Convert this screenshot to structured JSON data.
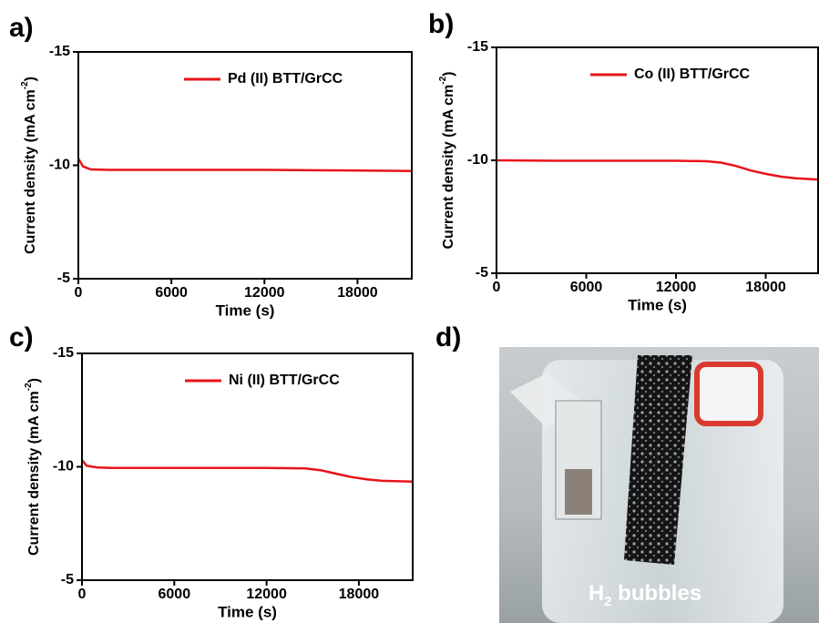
{
  "chart_data": [
    {
      "type": "line",
      "panel_label": "a)",
      "xlabel": "Time (s)",
      "ylabel": "Current density (mA cm",
      "ylabel_exp": "-2",
      "ylabel_end": ")",
      "x": [
        0,
        300,
        800,
        2000,
        6000,
        12000,
        16000,
        20000,
        21500
      ],
      "series": [
        {
          "name": "Pd (II) BTT/GrCC",
          "color": "#e8141a",
          "values": [
            -10.3,
            -9.95,
            -9.82,
            -9.8,
            -9.8,
            -9.8,
            -9.78,
            -9.76,
            -9.75
          ]
        }
      ],
      "xlim": [
        0,
        21500
      ],
      "xticks": [
        0,
        6000,
        12000,
        18000
      ],
      "ylim": [
        -5,
        -15
      ],
      "yticks": [
        -15,
        -10,
        -5
      ],
      "legend": "upper right"
    },
    {
      "type": "line",
      "panel_label": "b)",
      "xlabel": "Time (s)",
      "ylabel": "Current density (mA cm",
      "ylabel_exp": "-2",
      "ylabel_end": ")",
      "x": [
        0,
        4000,
        8000,
        12000,
        14000,
        15000,
        16000,
        17000,
        18000,
        19000,
        20000,
        21500
      ],
      "series": [
        {
          "name": "Co (II) BTT/GrCC",
          "color": "#e8141a",
          "values": [
            -10,
            -9.98,
            -9.98,
            -9.98,
            -9.96,
            -9.9,
            -9.75,
            -9.55,
            -9.4,
            -9.28,
            -9.2,
            -9.15
          ]
        }
      ],
      "xlim": [
        0,
        21500
      ],
      "xticks": [
        0,
        6000,
        12000,
        18000
      ],
      "ylim": [
        -5,
        -15
      ],
      "yticks": [
        -15,
        -10,
        -5
      ],
      "legend": "upper right"
    },
    {
      "type": "line",
      "panel_label": "c)",
      "xlabel": "Time (s)",
      "ylabel": "Current density (mA cm",
      "ylabel_exp": "-2",
      "ylabel_end": ")",
      "x": [
        0,
        300,
        1000,
        2000,
        6000,
        12000,
        14500,
        15500,
        16500,
        17500,
        18500,
        19500,
        21500
      ],
      "series": [
        {
          "name": "Ni (II) BTT/GrCC",
          "color": "#e8141a",
          "values": [
            -10.3,
            -10.05,
            -9.97,
            -9.95,
            -9.95,
            -9.95,
            -9.93,
            -9.85,
            -9.7,
            -9.55,
            -9.45,
            -9.38,
            -9.35
          ]
        }
      ],
      "xlim": [
        0,
        21500
      ],
      "xticks": [
        0,
        6000,
        12000,
        18000
      ],
      "ylim": [
        -5,
        -15
      ],
      "yticks": [
        -15,
        -10,
        -5
      ],
      "legend": "upper right"
    }
  ],
  "photo": {
    "panel_label": "d)",
    "caption": "H",
    "caption_sub": "2",
    "caption_end": " bubbles"
  }
}
